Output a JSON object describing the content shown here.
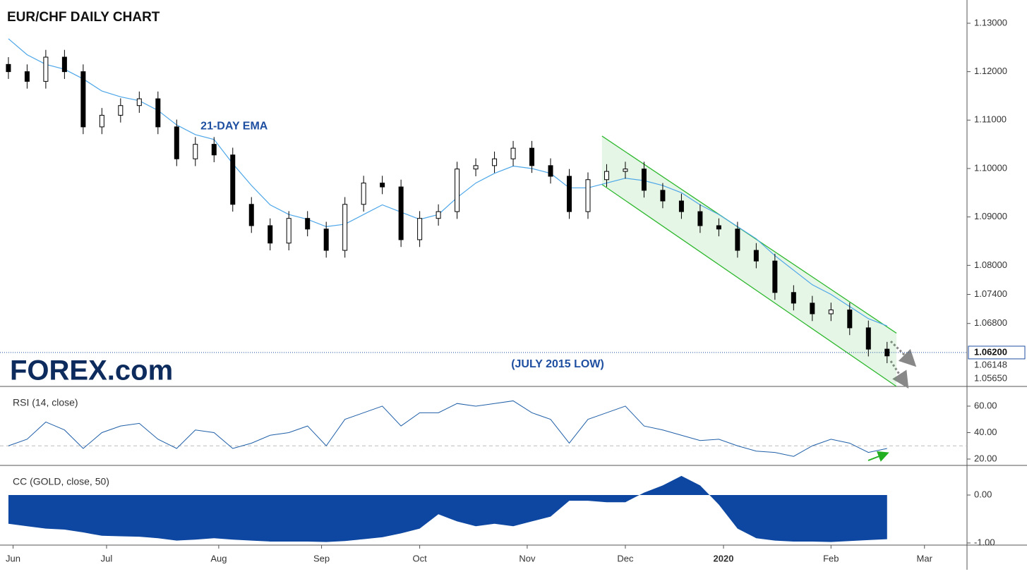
{
  "chart_data": [
    {
      "type": "candlestick",
      "title": "EUR/CHF DAILY CHART",
      "logo": "FOREX.com",
      "x": [
        0,
        4,
        8,
        12,
        16,
        20,
        24,
        28,
        32,
        36,
        40,
        44,
        48,
        52,
        56,
        60,
        64,
        68,
        72,
        76,
        80,
        84,
        88,
        92,
        96,
        100,
        104,
        108,
        112,
        116,
        120,
        124,
        128,
        132,
        136,
        140,
        144,
        148,
        152,
        156,
        160,
        164,
        168,
        172,
        176,
        180,
        184,
        188
      ],
      "open": [
        1.1215,
        1.12,
        1.118,
        1.123,
        1.12,
        1.1086,
        1.111,
        1.113,
        1.1144,
        1.1086,
        1.102,
        1.105,
        1.1028,
        1.0926,
        1.0882,
        1.0846,
        1.0897,
        1.0875,
        1.0831,
        1.0926,
        1.097,
        1.0962,
        1.0853,
        1.0897,
        1.0911,
        1.0999,
        1.1006,
        1.102,
        1.1042,
        1.1006,
        1.0984,
        1.0911,
        1.0977,
        1.0994,
        1.0999,
        1.0955,
        1.0933,
        1.0911,
        1.0882,
        1.0875,
        1.0831,
        1.0809,
        1.0744,
        1.0722,
        1.07,
        1.0708,
        1.0671,
        1.0627
      ],
      "high": [
        1.123,
        1.1215,
        1.1245,
        1.1245,
        1.1215,
        1.1125,
        1.1145,
        1.1159,
        1.1159,
        1.1101,
        1.1065,
        1.1065,
        1.1043,
        1.0941,
        1.0897,
        1.0912,
        1.0912,
        1.089,
        1.0941,
        1.0985,
        1.0985,
        1.0977,
        1.0912,
        1.0926,
        1.1014,
        1.1021,
        1.1035,
        1.1057,
        1.1057,
        1.1021,
        1.0999,
        1.0992,
        1.1009,
        1.1014,
        1.1014,
        1.097,
        1.0948,
        1.0926,
        1.0897,
        1.089,
        1.0846,
        1.0824,
        1.0759,
        1.0737,
        1.0723,
        1.0723,
        1.0686,
        1.0642
      ],
      "low": [
        1.1185,
        1.1165,
        1.1165,
        1.1185,
        1.1071,
        1.1071,
        1.1095,
        1.1115,
        1.1071,
        1.1005,
        1.1005,
        1.1013,
        1.0911,
        1.0867,
        1.0831,
        1.0831,
        1.086,
        1.0816,
        1.0816,
        1.0911,
        1.0947,
        1.0838,
        1.0838,
        1.0882,
        1.0896,
        1.0984,
        1.0991,
        1.1005,
        1.0991,
        1.0969,
        1.0896,
        1.0896,
        1.0962,
        1.0979,
        1.094,
        1.0918,
        1.0896,
        1.0867,
        1.086,
        1.0816,
        1.0794,
        1.0729,
        1.0707,
        1.0685,
        1.0685,
        1.0656,
        1.0612,
        1.0598
      ],
      "close": [
        1.12,
        1.118,
        1.123,
        1.12,
        1.1086,
        1.111,
        1.113,
        1.1144,
        1.1086,
        1.102,
        1.105,
        1.1028,
        1.0926,
        1.0882,
        1.0846,
        1.0897,
        1.0875,
        1.0831,
        1.0926,
        1.097,
        1.0962,
        1.0853,
        1.0897,
        1.0911,
        1.0999,
        1.1006,
        1.102,
        1.1042,
        1.1006,
        1.0984,
        1.0911,
        1.0977,
        1.0994,
        1.0999,
        1.0955,
        1.0933,
        1.0911,
        1.0882,
        1.0875,
        1.0831,
        1.0809,
        1.0744,
        1.0722,
        1.07,
        1.0708,
        1.0671,
        1.0627,
        1.0613
      ],
      "up_color": "#ffffff",
      "down_color": "#000000",
      "ema": {
        "name": "21-DAY EMA",
        "color": "#4da6e8",
        "values": [
          1.1268,
          1.1235,
          1.1215,
          1.1205,
          1.1185,
          1.116,
          1.1148,
          1.114,
          1.112,
          1.109,
          1.107,
          1.106,
          1.101,
          1.0965,
          1.0925,
          1.0905,
          1.0895,
          1.088,
          1.0885,
          1.0905,
          1.0925,
          1.091,
          1.0895,
          1.0905,
          1.094,
          1.097,
          1.099,
          1.1005,
          1.1,
          1.099,
          1.096,
          1.096,
          1.097,
          1.098,
          1.0975,
          1.0965,
          1.095,
          1.0925,
          1.0905,
          1.088,
          1.0855,
          1.082,
          1.079,
          1.076,
          1.074,
          1.0715,
          1.069,
          1.0675
        ]
      },
      "channel": {
        "color": "#2eb82e",
        "x": [
          127,
          190
        ],
        "upper": [
          1.1067,
          1.066
        ],
        "lower": [
          1.0967,
          1.055
        ]
      },
      "reference_line": {
        "value": 1.062,
        "label": "1.06200",
        "annotation": "(JULY 2015 LOW)",
        "color": "#1f4fa0"
      },
      "price_labels": [
        {
          "value": 1.06148,
          "label": "1.06148"
        },
        {
          "value": 1.0565,
          "label": "1.05650"
        }
      ],
      "xlim": [
        -1.8,
        205.1
      ],
      "ylim": [
        1.055,
        1.1348
      ],
      "yticks": [
        {
          "value": 1.13,
          "label": "1.13000"
        },
        {
          "value": 1.12,
          "label": "1.12000"
        },
        {
          "value": 1.11,
          "label": "1.11000"
        },
        {
          "value": 1.1,
          "label": "1.10000"
        },
        {
          "value": 1.09,
          "label": "1.09000"
        },
        {
          "value": 1.08,
          "label": "1.08000"
        },
        {
          "value": 1.074,
          "label": "1.07400"
        },
        {
          "value": 1.068,
          "label": "1.06800"
        }
      ]
    },
    {
      "type": "line",
      "title": "RSI (14, close)",
      "x": [
        0,
        4,
        8,
        12,
        16,
        20,
        24,
        28,
        32,
        36,
        40,
        44,
        48,
        52,
        56,
        60,
        64,
        68,
        72,
        76,
        80,
        84,
        88,
        92,
        96,
        100,
        104,
        108,
        112,
        116,
        120,
        124,
        128,
        132,
        136,
        140,
        144,
        148,
        152,
        156,
        160,
        164,
        168,
        172,
        176,
        180,
        184,
        188
      ],
      "series": [
        {
          "color": "#1f5fa8",
          "values": [
            30,
            35,
            48,
            42,
            28,
            40,
            45,
            47,
            35,
            28,
            42,
            40,
            28,
            32,
            38,
            40,
            45,
            30,
            50,
            55,
            60,
            45,
            55,
            55,
            62,
            60,
            62,
            64,
            55,
            50,
            32,
            50,
            55,
            60,
            45,
            42,
            38,
            34,
            35,
            30,
            26,
            25,
            22,
            30,
            35,
            32,
            25,
            28
          ]
        }
      ],
      "reference_level": 30,
      "xlim": [
        -1.8,
        205.1
      ],
      "ylim": [
        15.2,
        74.9
      ],
      "yticks": [
        {
          "value": 60,
          "label": "60.00"
        },
        {
          "value": 40,
          "label": "40.00"
        },
        {
          "value": 20,
          "label": "20.00"
        }
      ]
    },
    {
      "type": "area",
      "title": "CC (GOLD, close, 50)",
      "x": [
        0,
        4,
        8,
        12,
        16,
        20,
        24,
        28,
        32,
        36,
        40,
        44,
        48,
        52,
        56,
        60,
        64,
        68,
        72,
        76,
        80,
        84,
        88,
        92,
        96,
        100,
        104,
        108,
        112,
        116,
        120,
        124,
        128,
        132,
        136,
        140,
        144,
        148,
        152,
        156,
        160,
        164,
        168,
        172,
        176,
        180,
        184,
        188
      ],
      "series": [
        {
          "color": "#0d47a1",
          "values": [
            -0.6,
            -0.65,
            -0.7,
            -0.72,
            -0.78,
            -0.85,
            -0.86,
            -0.87,
            -0.9,
            -0.95,
            -0.93,
            -0.9,
            -0.93,
            -0.95,
            -0.97,
            -0.97,
            -0.97,
            -0.98,
            -0.96,
            -0.92,
            -0.88,
            -0.8,
            -0.7,
            -0.4,
            -0.55,
            -0.65,
            -0.6,
            -0.65,
            -0.55,
            -0.45,
            -0.12,
            -0.12,
            -0.15,
            -0.15,
            0.05,
            0.2,
            0.4,
            0.2,
            -0.2,
            -0.7,
            -0.9,
            -0.95,
            -0.97,
            -0.97,
            -0.98,
            -0.96,
            -0.94,
            -0.92
          ]
        }
      ],
      "xlim": [
        -1.8,
        205.1
      ],
      "ylim": [
        -1.044,
        0.618
      ],
      "yticks": [
        {
          "value": 0,
          "label": "0.00"
        },
        {
          "value": -1,
          "label": "-1.00"
        }
      ],
      "xticks": [
        {
          "value": 1,
          "label": "Jun"
        },
        {
          "value": 21,
          "label": "Jul"
        },
        {
          "value": 45,
          "label": "Aug"
        },
        {
          "value": 67,
          "label": "Sep"
        },
        {
          "value": 88,
          "label": "Oct"
        },
        {
          "value": 111,
          "label": "Nov"
        },
        {
          "value": 132,
          "label": "Dec"
        },
        {
          "value": 153,
          "label": "2020"
        },
        {
          "value": 176,
          "label": "Feb"
        },
        {
          "value": 196,
          "label": "Mar"
        }
      ]
    }
  ]
}
